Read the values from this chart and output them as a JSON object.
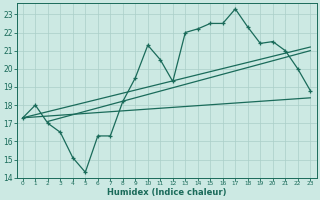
{
  "xlabel": "Humidex (Indice chaleur)",
  "bg_color": "#cce9e3",
  "line_color": "#1a6b5a",
  "grid_color": "#aacfc8",
  "main_x": [
    0,
    1,
    2,
    3,
    4,
    5,
    6,
    7,
    8,
    9,
    10,
    11,
    12,
    13,
    14,
    15,
    16,
    17,
    18,
    19,
    20,
    21,
    22,
    23
  ],
  "main_y": [
    17.3,
    18.0,
    17.0,
    16.5,
    15.1,
    14.3,
    16.3,
    16.3,
    18.2,
    19.5,
    21.3,
    20.5,
    19.3,
    22.0,
    22.2,
    22.5,
    22.5,
    23.3,
    22.3,
    21.4,
    21.5,
    21.0,
    20.0,
    18.8
  ],
  "env_line1_x": [
    0,
    23
  ],
  "env_line1_y": [
    17.3,
    21.2
  ],
  "env_line2_x": [
    0,
    23
  ],
  "env_line2_y": [
    17.3,
    18.4
  ],
  "env_line3_x": [
    2,
    23
  ],
  "env_line3_y": [
    17.1,
    21.0
  ],
  "ylim": [
    14.0,
    23.6
  ],
  "xlim": [
    -0.5,
    23.5
  ],
  "yticks": [
    14,
    15,
    16,
    17,
    18,
    19,
    20,
    21,
    22,
    23
  ],
  "xticks": [
    0,
    1,
    2,
    3,
    4,
    5,
    6,
    7,
    8,
    9,
    10,
    11,
    12,
    13,
    14,
    15,
    16,
    17,
    18,
    19,
    20,
    21,
    22,
    23
  ]
}
